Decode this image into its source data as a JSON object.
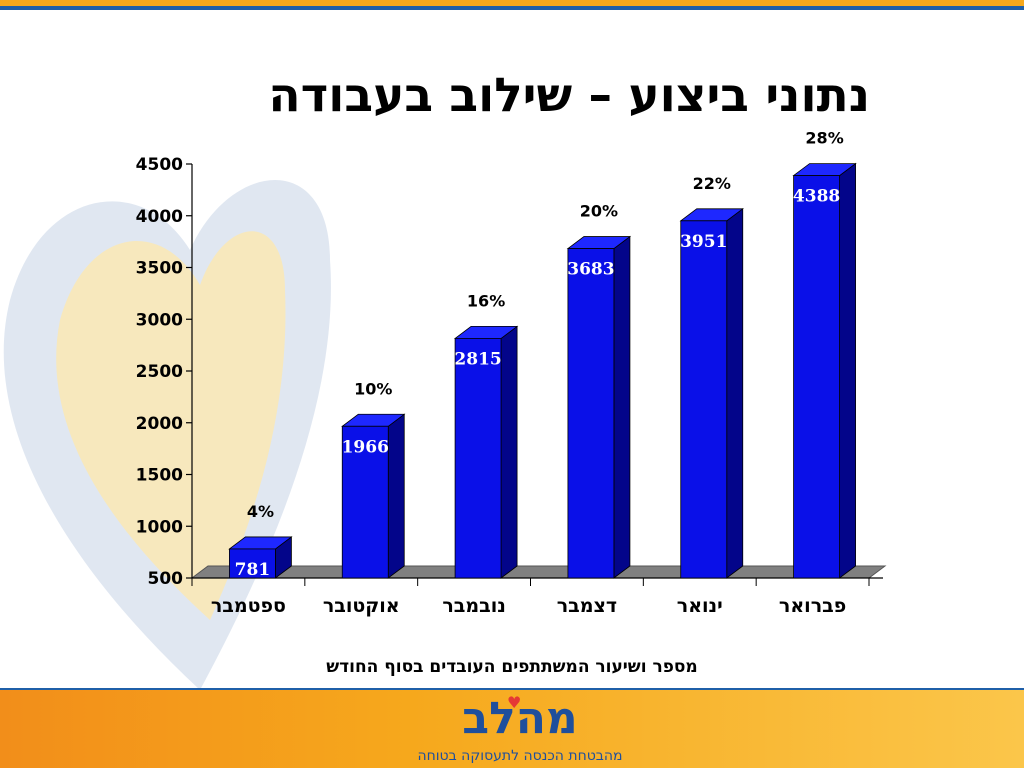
{
  "slide": {
    "title": "נתוני ביצוע – שילוב בעבודה",
    "caption": "מספר ושיעור המשתתפים העובדים בסוף החודש"
  },
  "logo": {
    "name": "מהלב",
    "tagline": "מהבטחת הכנסה לתעסוקה בטוחה"
  },
  "colors": {
    "bar_front": "#0a10e8",
    "bar_side": "#03058a",
    "bar_top": "#1e28ff",
    "floor": "#808080",
    "accent_orange": "#f6a81c",
    "accent_blue": "#1f5fa8"
  },
  "chart_data": {
    "type": "bar",
    "categories": [
      "ספטמבר",
      "אוקטובר",
      "נובמבר",
      "דצמבר",
      "ינואר",
      "פברואר"
    ],
    "values": [
      781,
      1966,
      2815,
      3683,
      3951,
      4388
    ],
    "percent_labels": [
      "4%",
      "10%",
      "16%",
      "20%",
      "22%",
      "28%"
    ],
    "ylim": [
      500,
      4500
    ],
    "yticks": [
      500,
      1000,
      1500,
      2000,
      2500,
      3000,
      3500,
      4000,
      4500
    ],
    "grid": false,
    "legend": "none"
  }
}
